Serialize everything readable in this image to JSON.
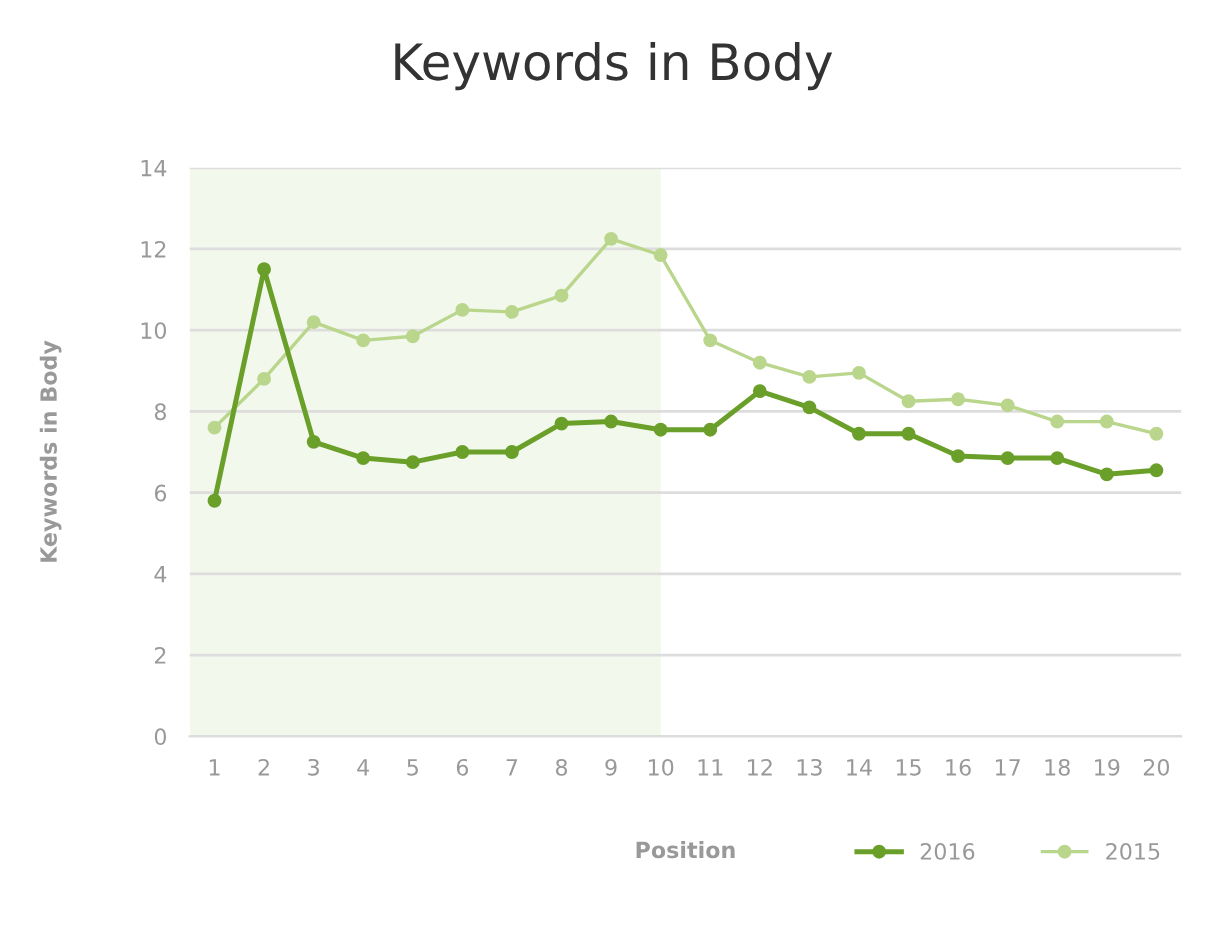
{
  "chart_data": {
    "type": "line",
    "title": "Keywords in Body",
    "xlabel": "Position",
    "ylabel": "Keywords in Body",
    "categories": [
      "1",
      "2",
      "3",
      "4",
      "5",
      "6",
      "7",
      "8",
      "9",
      "10",
      "11",
      "12",
      "13",
      "14",
      "15",
      "16",
      "17",
      "18",
      "19",
      "20"
    ],
    "series": [
      {
        "name": "2016",
        "color": "#6a9f2a",
        "values": [
          5.8,
          11.5,
          7.25,
          6.85,
          6.75,
          7.0,
          7.0,
          7.7,
          7.75,
          7.55,
          7.55,
          8.5,
          8.1,
          7.45,
          7.45,
          6.9,
          6.85,
          6.85,
          6.45,
          6.55
        ]
      },
      {
        "name": "2015",
        "color": "#b9d68c",
        "values": [
          7.6,
          8.8,
          10.2,
          9.75,
          9.85,
          10.5,
          10.45,
          10.85,
          12.25,
          11.85,
          9.75,
          9.2,
          8.85,
          8.95,
          8.25,
          8.3,
          8.15,
          7.75,
          7.75,
          7.45
        ]
      }
    ],
    "bands": [
      {
        "axis": "x",
        "from": "1",
        "to": "10",
        "color": "#f3f8ec"
      }
    ],
    "ylim": [
      0,
      14
    ],
    "yticks": [
      0,
      2,
      4,
      6,
      8,
      10,
      12,
      14
    ],
    "grid": "y",
    "legend": "bottom right",
    "marker": "circle",
    "line_style": "solid"
  }
}
